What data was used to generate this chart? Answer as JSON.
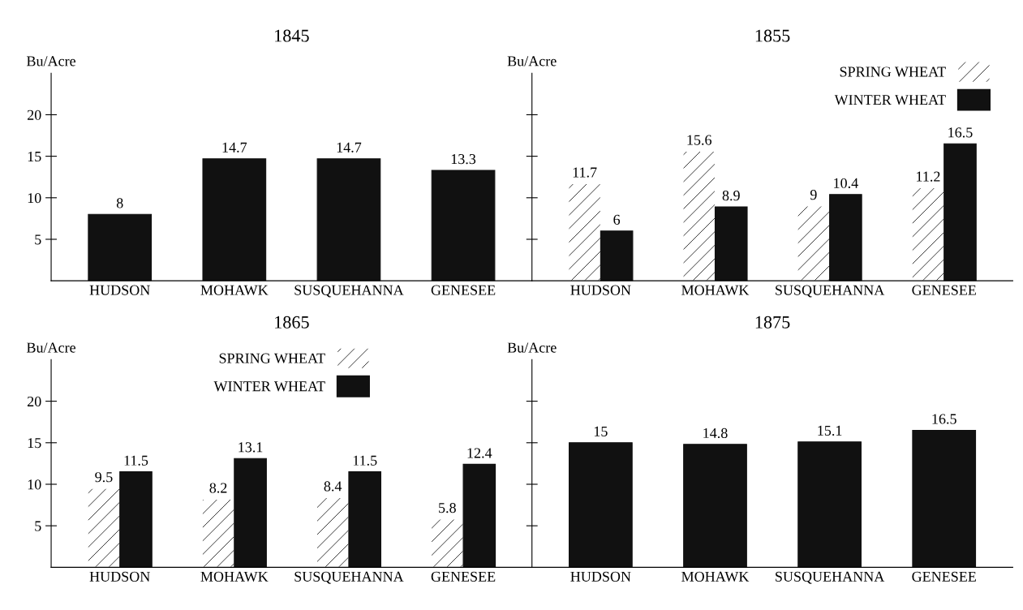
{
  "chart_data": [
    {
      "type": "bar",
      "title": "1845",
      "ylabel": "Bu/Acre",
      "categories": [
        "HUDSON",
        "MOHAWK",
        "SUSQUEHANNA",
        "GENESEE"
      ],
      "ylim": [
        0,
        25
      ],
      "yticks": [
        5,
        10,
        15,
        20
      ],
      "data_labels": true,
      "grid": false,
      "legend": false,
      "series": [
        {
          "color": "#111111",
          "values": [
            8,
            14.7,
            14.7,
            13.3
          ]
        }
      ]
    },
    {
      "type": "bar",
      "title": "1855",
      "ylabel": "Bu/Acre",
      "categories": [
        "HUDSON",
        "MOHAWK",
        "SUSQUEHANNA",
        "GENESEE"
      ],
      "ylim": [
        0,
        25
      ],
      "yticks": [
        5,
        10,
        15,
        20
      ],
      "tick_labels": "x",
      "data_labels": true,
      "grid": false,
      "legend": "top right",
      "series": [
        {
          "name": "SPRING WHEAT",
          "color": "#ffffff",
          "values": [
            11.7,
            15.6,
            9,
            11.2
          ]
        },
        {
          "name": "WINTER WHEAT",
          "color": "#111111",
          "values": [
            6,
            8.9,
            10.4,
            16.5
          ]
        }
      ]
    },
    {
      "type": "bar",
      "title": "1865",
      "ylabel": "Bu/Acre",
      "categories": [
        "HUDSON",
        "MOHAWK",
        "SUSQUEHANNA",
        "GENESEE"
      ],
      "ylim": [
        0,
        25
      ],
      "yticks": [
        5,
        10,
        15,
        20
      ],
      "data_labels": true,
      "grid": false,
      "legend": "top",
      "series": [
        {
          "name": "SPRING WHEAT",
          "color": "#ffffff",
          "values": [
            9.5,
            8.2,
            8.4,
            5.8
          ]
        },
        {
          "name": "WINTER WHEAT",
          "color": "#111111",
          "values": [
            11.5,
            13.1,
            11.5,
            12.4
          ]
        }
      ]
    },
    {
      "type": "bar",
      "title": "1875",
      "ylabel": "Bu/Acre",
      "categories": [
        "HUDSON",
        "MOHAWK",
        "SUSQUEHANNA",
        "GENESEE"
      ],
      "ylim": [
        0,
        25
      ],
      "yticks": [
        5,
        10,
        15,
        20
      ],
      "tick_labels": "x",
      "data_labels": true,
      "grid": false,
      "legend": false,
      "series": [
        {
          "color": "#111111",
          "values": [
            15,
            14.8,
            15.1,
            16.5
          ]
        }
      ]
    }
  ]
}
